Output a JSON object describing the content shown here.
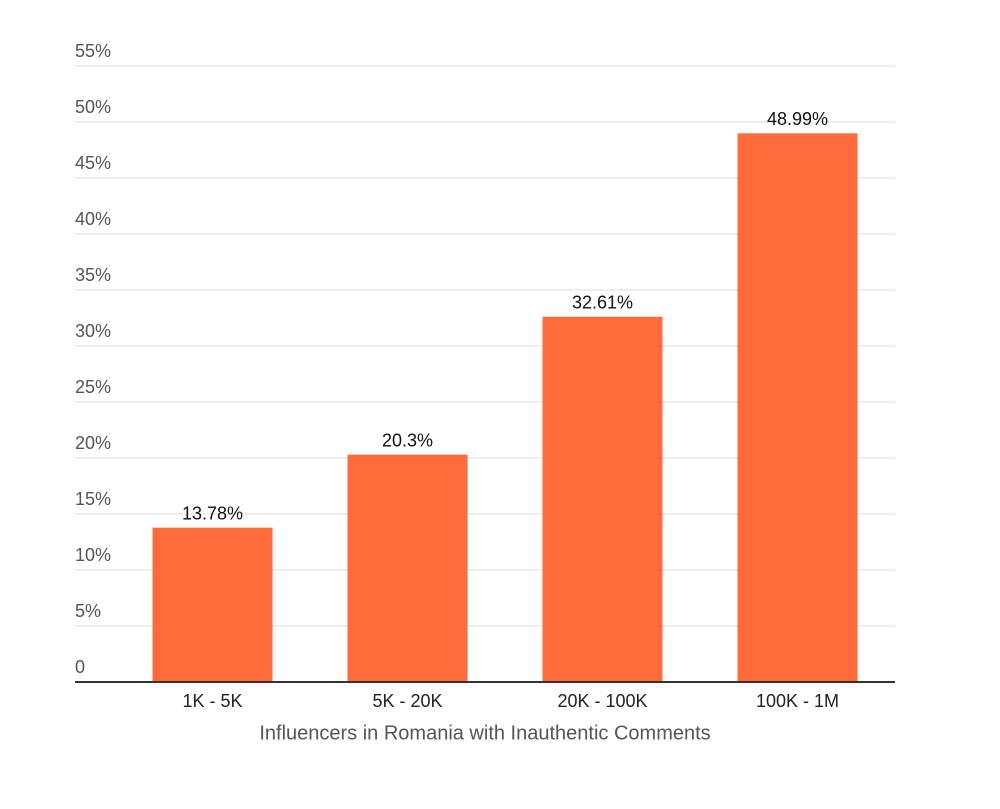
{
  "chart_data": {
    "type": "bar",
    "x_label": "Influencers in Romania with Inauthentic Comments",
    "categories": [
      "1K - 5K",
      "5K - 20K",
      "20K - 100K",
      "100K - 1M"
    ],
    "values": [
      13.78,
      20.3,
      32.61,
      48.99
    ],
    "value_labels": [
      "13.78%",
      "20.3%",
      "32.61%",
      "48.99%"
    ],
    "color": "#ff6b3b",
    "ylim": [
      0,
      55
    ],
    "yticks": [
      0,
      {
        "value": 5,
        "label": "5%"
      },
      {
        "value": 10,
        "label": "10%"
      },
      {
        "value": 15,
        "label": "15%"
      },
      {
        "value": 20,
        "label": "20%"
      },
      {
        "value": 25,
        "label": "25%"
      },
      {
        "value": 30,
        "label": "30%"
      },
      {
        "value": 35,
        "label": "35%"
      },
      {
        "value": 40,
        "label": "40%"
      },
      {
        "value": 45,
        "label": "45%"
      },
      {
        "value": 50,
        "label": "50%"
      },
      {
        "value": 55,
        "label": "55%"
      }
    ],
    "grid": true
  }
}
